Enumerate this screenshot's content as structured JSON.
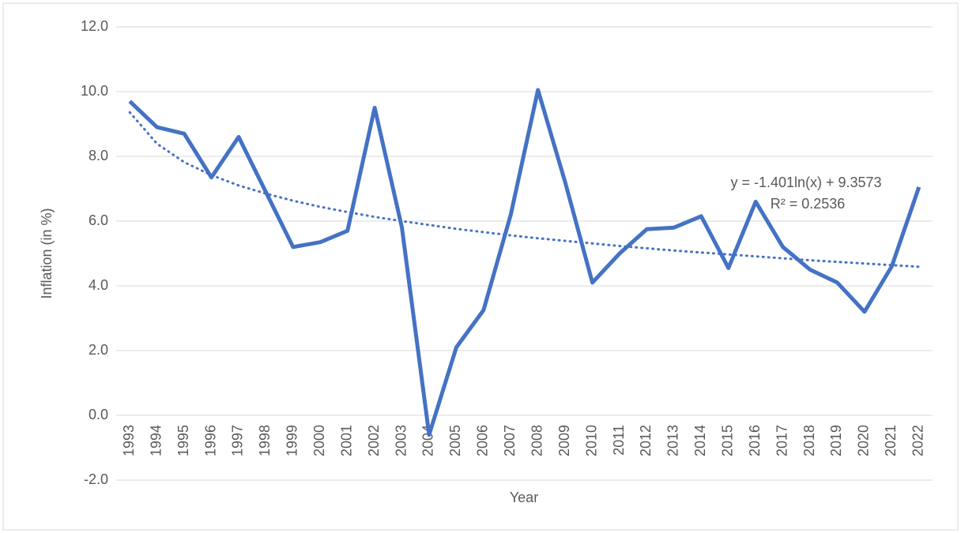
{
  "chart_data": {
    "type": "line",
    "y_label": "Inflation (in %)",
    "x_label": "Year",
    "categories": [
      "1993",
      "1994",
      "1995",
      "1996",
      "1997",
      "1998",
      "1999",
      "2000",
      "2001",
      "2002",
      "2003",
      "2004",
      "2005",
      "2006",
      "2007",
      "2008",
      "2009",
      "2010",
      "2011",
      "2012",
      "2013",
      "2014",
      "2015",
      "2016",
      "2017",
      "2018",
      "2019",
      "2020",
      "2021",
      "2022"
    ],
    "series": [
      {
        "name": "Inflation",
        "color": "#4472c4",
        "values": [
          9.7,
          8.9,
          8.7,
          7.35,
          8.6,
          6.9,
          5.2,
          5.35,
          5.7,
          9.5,
          5.8,
          -0.6,
          2.1,
          3.25,
          6.2,
          10.05,
          7.2,
          4.1,
          5.0,
          5.75,
          5.8,
          6.15,
          4.55,
          6.6,
          5.2,
          4.5,
          4.1,
          3.2,
          4.6,
          7.05
        ]
      }
    ],
    "trendline": {
      "color": "#4472c4",
      "equation": "y = -1.401ln(x) + 9.3573",
      "r_squared": "R² = 0.2536",
      "values": [
        9.36,
        8.39,
        7.82,
        7.42,
        7.1,
        6.85,
        6.63,
        6.44,
        6.28,
        6.13,
        6.0,
        5.88,
        5.76,
        5.66,
        5.56,
        5.47,
        5.39,
        5.31,
        5.23,
        5.16,
        5.09,
        5.03,
        4.97,
        4.91,
        4.85,
        4.79,
        4.74,
        4.69,
        4.64,
        4.59
      ]
    },
    "ylim": [
      -2,
      12
    ],
    "yticks": [
      {
        "value": -2,
        "label": "-2.0"
      },
      {
        "value": 0,
        "label": "0.0"
      },
      {
        "value": 2,
        "label": "2.0"
      },
      {
        "value": 4,
        "label": "4.0"
      },
      {
        "value": 6,
        "label": "6.0"
      },
      {
        "value": 8,
        "label": "8.0"
      },
      {
        "value": 10,
        "label": "10.0"
      },
      {
        "value": 12,
        "label": "12.0"
      }
    ],
    "grid": true
  }
}
